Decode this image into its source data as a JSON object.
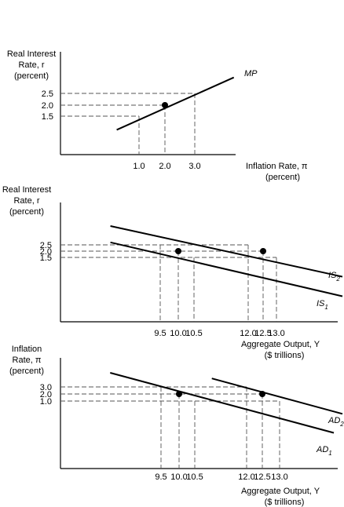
{
  "chart_data": [
    {
      "type": "line",
      "title": "",
      "ylabel_lines": [
        "Real Interest",
        "Rate, r",
        "(percent)"
      ],
      "xlabel_lines": [
        "Inflation Rate, π",
        "(percent)"
      ],
      "x_ticks": [
        "1.0",
        "2.0",
        "3.0"
      ],
      "y_ticks": [
        "2.5",
        "2.0",
        "1.5"
      ],
      "series": [
        {
          "name": "MP",
          "points": [
            [
              0.2,
              0.9
            ],
            [
              1.0,
              1.5
            ],
            [
              2.0,
              2.0
            ],
            [
              3.0,
              2.5
            ],
            [
              4.4,
              3.2
            ]
          ]
        }
      ],
      "highlight_points": [
        [
          2.0,
          2.0
        ]
      ],
      "guides": [
        [
          1.0,
          1.5
        ],
        [
          2.0,
          2.0
        ],
        [
          3.0,
          2.5
        ]
      ]
    },
    {
      "type": "line",
      "title": "",
      "ylabel_lines": [
        "Real Interest",
        "Rate, r",
        "(percent)"
      ],
      "xlabel_lines": [
        "Aggregate Output, Y",
        "($ trillions)"
      ],
      "x_ticks": [
        "9.5",
        "10.0",
        "10.5",
        "12.0",
        "12.5",
        "13.0"
      ],
      "y_ticks": [
        "2.5",
        "2.0",
        "1.5"
      ],
      "series": [
        {
          "name": "IS",
          "sub": "2",
          "points": [
            [
              8.0,
              4.0
            ],
            [
              12.0,
              2.5
            ],
            [
              12.5,
              2.0
            ],
            [
              13.0,
              1.5
            ],
            [
              15.1,
              -0.1
            ]
          ]
        },
        {
          "name": "IS",
          "sub": "1",
          "points": [
            [
              8.0,
              2.7
            ],
            [
              9.5,
              2.5
            ],
            [
              10.0,
              2.0
            ],
            [
              10.5,
              1.5
            ],
            [
              15.0,
              -1.6
            ]
          ]
        }
      ],
      "highlight_points": [
        [
          10.0,
          2.0
        ],
        [
          12.5,
          2.0
        ]
      ],
      "guides": [
        [
          9.5,
          2.5
        ],
        [
          10.0,
          2.0
        ],
        [
          10.5,
          1.5
        ],
        [
          12.0,
          2.5
        ],
        [
          12.5,
          2.0
        ],
        [
          13.0,
          1.5
        ]
      ]
    },
    {
      "type": "line",
      "title": "",
      "ylabel_lines": [
        "Inflation",
        "Rate, π",
        "(percent)"
      ],
      "xlabel_lines": [
        "Aggregate Output, Y",
        "($ trillions)"
      ],
      "x_ticks": [
        "9.5",
        "10.0",
        "10.5",
        "12.0",
        "12.5",
        "13.0"
      ],
      "y_ticks": [
        "3.0",
        "2.0",
        "1.0"
      ],
      "series": [
        {
          "name": "AD",
          "sub": "2",
          "points": [
            [
              11.0,
              4.2
            ],
            [
              12.0,
              3.0
            ],
            [
              12.5,
              2.0
            ],
            [
              13.0,
              1.0
            ],
            [
              15.0,
              -1.0
            ]
          ]
        },
        {
          "name": "AD",
          "sub": "1",
          "points": [
            [
              8.0,
              5.0
            ],
            [
              9.5,
              3.0
            ],
            [
              10.0,
              2.0
            ],
            [
              10.5,
              1.0
            ],
            [
              14.6,
              -3.5
            ]
          ]
        }
      ],
      "highlight_points": [
        [
          10.0,
          2.0
        ],
        [
          12.5,
          2.0
        ]
      ],
      "guides": [
        [
          9.5,
          3.0
        ],
        [
          10.0,
          2.0
        ],
        [
          10.5,
          1.0
        ],
        [
          12.0,
          3.0
        ],
        [
          12.5,
          2.0
        ],
        [
          13.0,
          1.0
        ]
      ]
    }
  ]
}
